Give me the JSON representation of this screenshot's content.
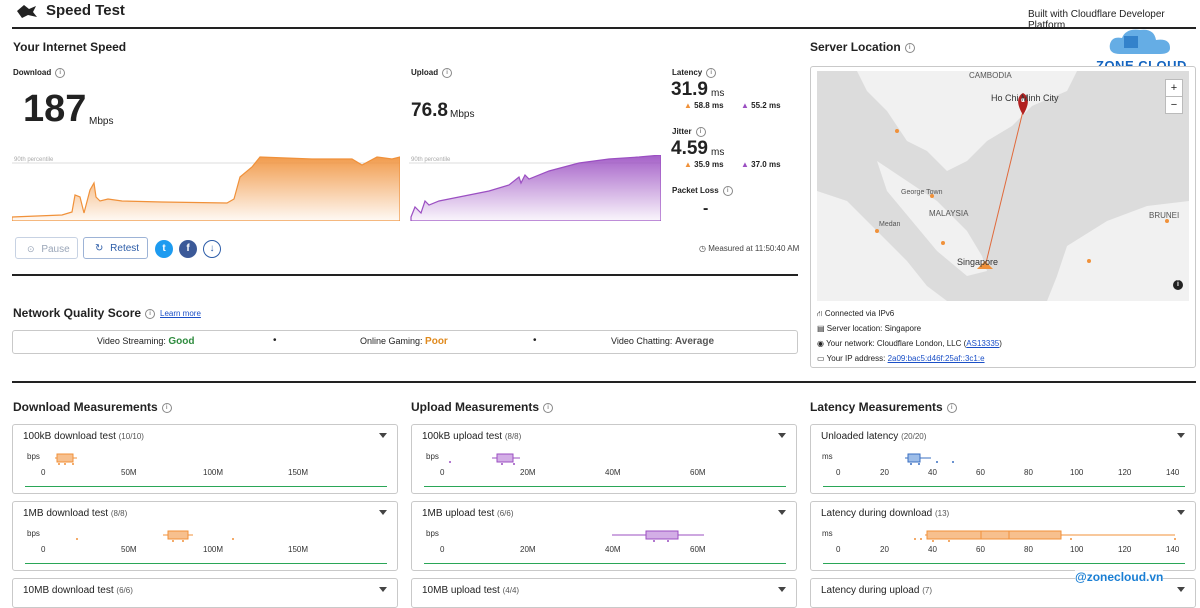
{
  "header": {
    "title": "Speed Test",
    "built_with": "Built with Cloudflare Developer Platform"
  },
  "watermark": {
    "brand": "ZONE CLOUD",
    "handle": "@zonecloud.vn"
  },
  "speed": {
    "section_title": "Your Internet Speed",
    "download_label": "Download",
    "download_value": "187",
    "download_unit": "Mbps",
    "upload_label": "Upload",
    "upload_value": "76.8",
    "upload_unit": "Mbps",
    "percentile": "90th percentile",
    "latency_label": "Latency",
    "latency_value": "31.9",
    "latency_unit": "ms",
    "latency_down": "58.8 ms",
    "latency_up": "55.2 ms",
    "jitter_label": "Jitter",
    "jitter_value": "4.59",
    "jitter_unit": "ms",
    "jitter_down": "35.9 ms",
    "jitter_up": "37.0 ms",
    "packet_loss_label": "Packet Loss",
    "packet_loss_value": "-",
    "pause": "Pause",
    "retest": "Retest",
    "measured_at": "Measured at 11:50:40 AM",
    "colors": {
      "download": "#f0913a",
      "upload": "#9b4fc2"
    }
  },
  "nqs": {
    "title": "Network Quality Score",
    "learn_more": "Learn more",
    "items": [
      {
        "label": "Video Streaming:",
        "value": "Good",
        "color": "#2e8b3e"
      },
      {
        "label": "Online Gaming:",
        "value": "Poor",
        "color": "#e08a1e"
      },
      {
        "label": "Video Chatting:",
        "value": "Average",
        "color": "#555555"
      }
    ]
  },
  "server": {
    "title": "Server Location",
    "map_labels": [
      "CAMBODIA",
      "Ho Chi Minh City",
      "George Town",
      "MALAYSIA",
      "Medan",
      "Singapore",
      "BRUNEI"
    ],
    "zoom_in": "+",
    "zoom_out": "−",
    "connected": "Connected via IPv6",
    "server_location": "Server location: Singapore",
    "network_prefix": "Your network: Cloudflare London, LLC (",
    "network_asn": "AS13335",
    "network_suffix": ")",
    "ip_prefix": "Your IP address: ",
    "ip_value": "2a09:bac5:d46f:25af::3c1:e"
  },
  "download_measurements": {
    "title": "Download Measurements",
    "unit": "bps",
    "ticks": [
      "0",
      "50M",
      "100M",
      "150M"
    ],
    "tests": [
      {
        "label": "100kB download test",
        "count": "(10/10)"
      },
      {
        "label": "1MB download test",
        "count": "(8/8)"
      },
      {
        "label": "10MB download test",
        "count": "(6/6)"
      }
    ]
  },
  "upload_measurements": {
    "title": "Upload Measurements",
    "unit": "bps",
    "ticks": [
      "0",
      "20M",
      "40M",
      "60M"
    ],
    "tests": [
      {
        "label": "100kB upload test",
        "count": "(8/8)"
      },
      {
        "label": "1MB upload test",
        "count": "(6/6)"
      },
      {
        "label": "10MB upload test",
        "count": "(4/4)"
      }
    ]
  },
  "latency_measurements": {
    "title": "Latency Measurements",
    "unit": "ms",
    "ticks": [
      "0",
      "20",
      "40",
      "60",
      "80",
      "100",
      "120",
      "140"
    ],
    "tests": [
      {
        "label": "Unloaded latency",
        "count": "(20/20)"
      },
      {
        "label": "Latency during download",
        "count": "(13)"
      },
      {
        "label": "Latency during upload",
        "count": "(7)"
      }
    ]
  }
}
